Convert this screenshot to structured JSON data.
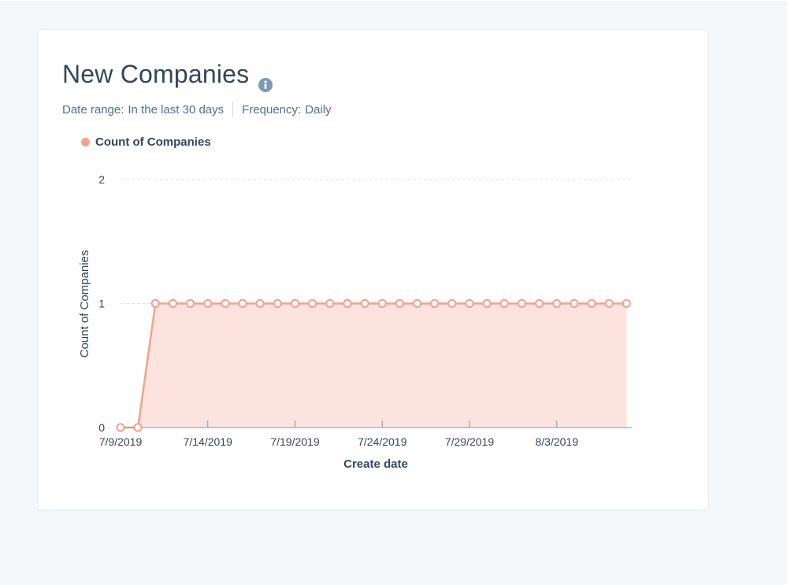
{
  "card": {
    "title": "New Companies",
    "info_icon": "info-circle-icon",
    "date_range_label": "Date range:",
    "date_range_value": "In the last 30 days",
    "frequency_label": "Frequency:",
    "frequency_value": "Daily"
  },
  "colors": {
    "series": "#f5a18b",
    "fill": "#fde3dd",
    "text": "#33475b",
    "muted": "#516f90",
    "grid": "#dfe3eb",
    "axis": "#7c98b6"
  },
  "chart_data": {
    "type": "area",
    "xlabel": "Create date",
    "ylabel": "Count of Companies",
    "ylim": [
      0,
      2
    ],
    "yticks": [
      0,
      1,
      2
    ],
    "xtick_labels": [
      "7/9/2019",
      "7/14/2019",
      "7/19/2019",
      "7/24/2019",
      "7/29/2019",
      "8/3/2019"
    ],
    "legend": "top-left",
    "grid": true,
    "x": [
      "7/9/2019",
      "7/10/2019",
      "7/11/2019",
      "7/12/2019",
      "7/13/2019",
      "7/14/2019",
      "7/15/2019",
      "7/16/2019",
      "7/17/2019",
      "7/18/2019",
      "7/19/2019",
      "7/20/2019",
      "7/21/2019",
      "7/22/2019",
      "7/23/2019",
      "7/24/2019",
      "7/25/2019",
      "7/26/2019",
      "7/27/2019",
      "7/28/2019",
      "7/29/2019",
      "7/30/2019",
      "7/31/2019",
      "8/1/2019",
      "8/2/2019",
      "8/3/2019",
      "8/4/2019",
      "8/5/2019",
      "8/6/2019",
      "8/7/2019"
    ],
    "series": [
      {
        "name": "Count of Companies",
        "values": [
          0,
          0,
          1,
          1,
          1,
          1,
          1,
          1,
          1,
          1,
          1,
          1,
          1,
          1,
          1,
          1,
          1,
          1,
          1,
          1,
          1,
          1,
          1,
          1,
          1,
          1,
          1,
          1,
          1,
          1
        ]
      }
    ]
  }
}
